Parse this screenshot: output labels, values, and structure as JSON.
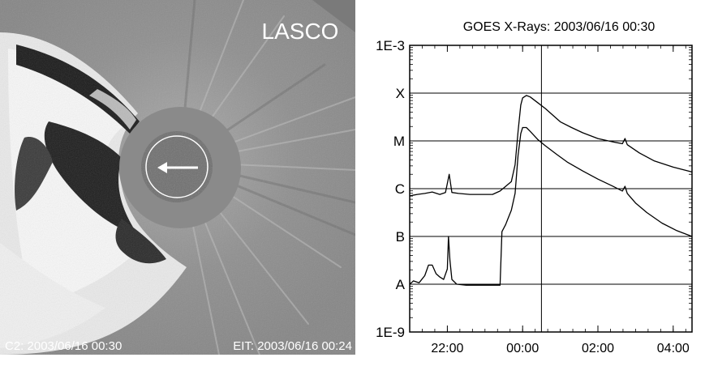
{
  "lasco": {
    "label": "LASCO",
    "c2_caption": "C2: 2003/06/16 00:30",
    "eit_caption": "EIT: 2003/06/16 00:24"
  },
  "chart_data": {
    "type": "line",
    "title": "GOES X-Rays: 2003/06/16 00:30",
    "x_tick_labels": [
      "22:00",
      "00:00",
      "02:00",
      "04:00"
    ],
    "x_tick_hours": [
      -2,
      0,
      2,
      4
    ],
    "xlim": [
      -3,
      4.5
    ],
    "y_scale": "log",
    "y_tick_labels": [
      "1E-3",
      "X",
      "M",
      "C",
      "B",
      "A",
      "1E-9"
    ],
    "y_tick_exponents": [
      -3,
      -4,
      -5,
      -6,
      -7,
      -8,
      -9
    ],
    "ylim_exponent": [
      -9,
      -3
    ],
    "grid": "horizontal at class levels",
    "marker_line_hour": 0.5,
    "series": [
      {
        "points": [
          [
            -3.0,
            -6.15
          ],
          [
            -2.8,
            -6.12
          ],
          [
            -2.6,
            -6.1
          ],
          [
            -2.4,
            -6.07
          ],
          [
            -2.2,
            -6.12
          ],
          [
            -2.05,
            -6.08
          ],
          [
            -1.95,
            -5.7
          ],
          [
            -1.88,
            -6.08
          ],
          [
            -1.7,
            -6.1
          ],
          [
            -1.4,
            -6.12
          ],
          [
            -1.1,
            -6.12
          ],
          [
            -0.8,
            -6.12
          ],
          [
            -0.6,
            -6.05
          ],
          [
            -0.45,
            -5.95
          ],
          [
            -0.3,
            -5.85
          ],
          [
            -0.2,
            -5.5
          ],
          [
            -0.12,
            -4.8
          ],
          [
            -0.05,
            -4.25
          ],
          [
            0.0,
            -4.1
          ],
          [
            0.1,
            -4.05
          ],
          [
            0.2,
            -4.08
          ],
          [
            0.4,
            -4.2
          ],
          [
            0.6,
            -4.32
          ],
          [
            0.8,
            -4.46
          ],
          [
            1.0,
            -4.6
          ],
          [
            1.3,
            -4.72
          ],
          [
            1.6,
            -4.83
          ],
          [
            2.0,
            -4.95
          ],
          [
            2.4,
            -5.02
          ],
          [
            2.65,
            -5.06
          ],
          [
            2.72,
            -4.95
          ],
          [
            2.78,
            -5.08
          ],
          [
            3.1,
            -5.25
          ],
          [
            3.5,
            -5.42
          ],
          [
            4.0,
            -5.55
          ],
          [
            4.5,
            -5.65
          ]
        ]
      },
      {
        "points": [
          [
            -3.0,
            -8.0
          ],
          [
            -2.9,
            -7.93
          ],
          [
            -2.75,
            -7.97
          ],
          [
            -2.6,
            -7.82
          ],
          [
            -2.5,
            -7.6
          ],
          [
            -2.4,
            -7.6
          ],
          [
            -2.3,
            -7.78
          ],
          [
            -2.2,
            -7.85
          ],
          [
            -2.1,
            -7.9
          ],
          [
            -2.0,
            -7.68
          ],
          [
            -1.97,
            -7.0
          ],
          [
            -1.93,
            -7.5
          ],
          [
            -1.88,
            -7.9
          ],
          [
            -1.75,
            -8.0
          ],
          [
            -1.5,
            -8.02
          ],
          [
            -1.3,
            -8.02
          ],
          [
            -1.1,
            -8.02
          ],
          [
            -0.8,
            -8.02
          ],
          [
            -0.6,
            -8.02
          ],
          [
            -0.55,
            -6.9
          ],
          [
            -0.45,
            -6.75
          ],
          [
            -0.4,
            -6.65
          ],
          [
            -0.3,
            -6.45
          ],
          [
            -0.2,
            -6.1
          ],
          [
            -0.12,
            -5.3
          ],
          [
            -0.05,
            -4.85
          ],
          [
            0.0,
            -4.72
          ],
          [
            0.1,
            -4.72
          ],
          [
            0.2,
            -4.8
          ],
          [
            0.4,
            -4.97
          ],
          [
            0.6,
            -5.1
          ],
          [
            0.9,
            -5.28
          ],
          [
            1.2,
            -5.45
          ],
          [
            1.6,
            -5.63
          ],
          [
            2.0,
            -5.8
          ],
          [
            2.4,
            -5.95
          ],
          [
            2.65,
            -6.05
          ],
          [
            2.72,
            -5.95
          ],
          [
            2.78,
            -6.1
          ],
          [
            3.0,
            -6.3
          ],
          [
            3.3,
            -6.5
          ],
          [
            3.7,
            -6.72
          ],
          [
            4.1,
            -6.88
          ],
          [
            4.5,
            -7.0
          ]
        ]
      }
    ]
  }
}
